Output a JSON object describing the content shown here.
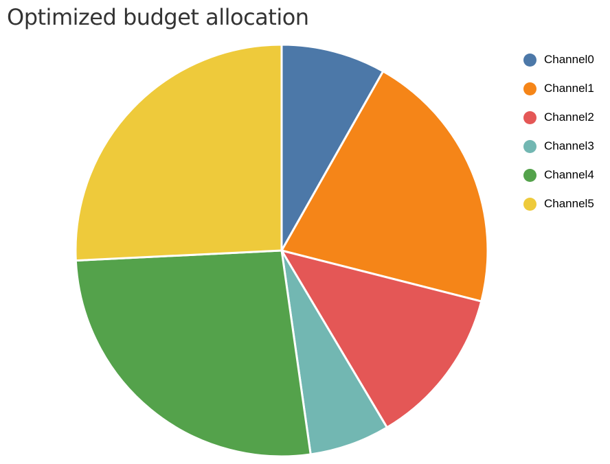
{
  "chart_data": {
    "type": "pie",
    "title": "Optimized budget allocation",
    "categories": [
      "Channel0",
      "Channel1",
      "Channel2",
      "Channel3",
      "Channel4",
      "Channel5"
    ],
    "values": [
      8.2,
      20.8,
      12.5,
      6.3,
      26.5,
      25.8
    ],
    "colors": [
      "#4c78a8",
      "#f58518",
      "#e45756",
      "#72b7b2",
      "#54a24b",
      "#eeca3b"
    ],
    "legend_position": "right"
  }
}
